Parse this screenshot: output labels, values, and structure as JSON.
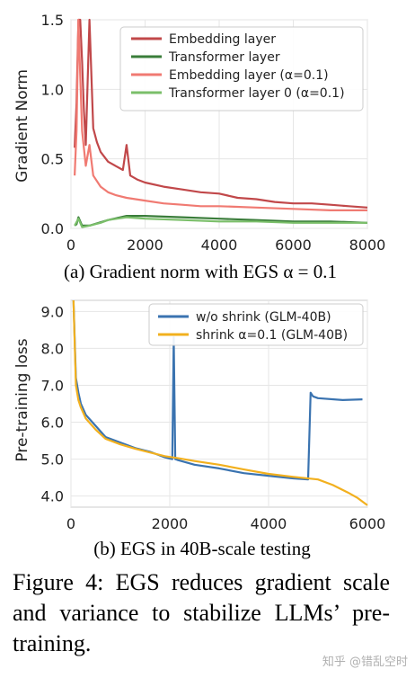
{
  "chart_data": [
    {
      "type": "line",
      "subplot_caption": "(a) Gradient norm with EGS α = 0.1",
      "xlabel": "",
      "ylabel": "Gradient Norm",
      "xlim": [
        0,
        8000
      ],
      "ylim": [
        0,
        1.5
      ],
      "x_ticks": [
        "0",
        "2000",
        "4000",
        "6000",
        "8000"
      ],
      "y_ticks": [
        "0.0",
        "0.5",
        "1.0",
        "1.5"
      ],
      "grid": true,
      "legend_position": "top-right",
      "series": [
        {
          "name": "Embedding layer",
          "color": "#c1484a",
          "x": [
            100,
            150,
            200,
            250,
            300,
            350,
            400,
            500,
            600,
            700,
            800,
            1000,
            1200,
            1400,
            1500,
            1600,
            1800,
            2000,
            2500,
            3000,
            3500,
            4000,
            4500,
            5000,
            5500,
            6000,
            6500,
            7000,
            7500,
            8000
          ],
          "y": [
            0.58,
            0.9,
            1.5,
            1.5,
            1.2,
            0.85,
            0.6,
            1.5,
            0.72,
            0.62,
            0.55,
            0.48,
            0.45,
            0.42,
            0.6,
            0.38,
            0.35,
            0.33,
            0.3,
            0.28,
            0.26,
            0.25,
            0.22,
            0.21,
            0.19,
            0.18,
            0.18,
            0.17,
            0.16,
            0.15
          ]
        },
        {
          "name": "Transformer layer",
          "color": "#3a7d3a",
          "x": [
            100,
            150,
            200,
            300,
            500,
            1000,
            1500,
            2000,
            3000,
            4000,
            5000,
            6000,
            7000,
            8000
          ],
          "y": [
            0.02,
            0.03,
            0.08,
            0.02,
            0.02,
            0.06,
            0.09,
            0.09,
            0.08,
            0.07,
            0.06,
            0.05,
            0.05,
            0.04
          ]
        },
        {
          "name": "Embedding layer (α=0.1)",
          "color": "#f07a72",
          "x": [
            100,
            150,
            200,
            250,
            300,
            400,
            500,
            600,
            800,
            1000,
            1200,
            1500,
            2000,
            2500,
            3000,
            3500,
            4000,
            5000,
            6000,
            7000,
            8000
          ],
          "y": [
            0.38,
            0.7,
            1.5,
            1.1,
            0.7,
            0.45,
            0.6,
            0.38,
            0.3,
            0.26,
            0.24,
            0.22,
            0.2,
            0.18,
            0.17,
            0.16,
            0.16,
            0.15,
            0.14,
            0.13,
            0.13
          ]
        },
        {
          "name": "Transformer layer 0 (α=0.1)",
          "color": "#7bbf6a",
          "x": [
            100,
            200,
            300,
            500,
            800,
            1000,
            1500,
            2000,
            3000,
            4000,
            5000,
            6000,
            7000,
            8000
          ],
          "y": [
            0.02,
            0.07,
            0.01,
            0.02,
            0.04,
            0.06,
            0.08,
            0.07,
            0.06,
            0.05,
            0.05,
            0.04,
            0.04,
            0.04
          ]
        }
      ]
    },
    {
      "type": "line",
      "subplot_caption": "(b) EGS in 40B-scale testing",
      "xlabel": "",
      "ylabel": "Pre-training loss",
      "xlim": [
        0,
        6000
      ],
      "ylim": [
        3.7,
        9.3
      ],
      "x_ticks": [
        "0",
        "2000",
        "4000",
        "6000"
      ],
      "y_ticks": [
        "4.0",
        "5.0",
        "6.0",
        "7.0",
        "8.0",
        "9.0"
      ],
      "grid": true,
      "legend_position": "top-right",
      "series": [
        {
          "name": "w/o shrink (GLM-40B)",
          "color": "#3a73b0",
          "x": [
            50,
            100,
            150,
            200,
            300,
            500,
            700,
            1000,
            1300,
            1600,
            1900,
            2050,
            2080,
            2110,
            2150,
            2500,
            3000,
            3500,
            4000,
            4500,
            4800,
            4850,
            4900,
            5000,
            5500,
            5900
          ],
          "y": [
            9.5,
            7.2,
            6.8,
            6.5,
            6.2,
            5.9,
            5.6,
            5.45,
            5.3,
            5.2,
            5.05,
            5.0,
            8.3,
            5.0,
            4.98,
            4.85,
            4.75,
            4.62,
            4.55,
            4.48,
            4.45,
            6.8,
            6.7,
            6.65,
            6.6,
            6.62
          ]
        },
        {
          "name": "shrink α=0.1 (GLM-40B)",
          "color": "#f2b01e",
          "x": [
            50,
            100,
            150,
            200,
            300,
            500,
            700,
            1000,
            1300,
            1600,
            1900,
            2200,
            2500,
            3000,
            3500,
            4000,
            4500,
            5000,
            5300,
            5600,
            5800,
            6000
          ],
          "y": [
            9.5,
            7.0,
            6.6,
            6.4,
            6.1,
            5.8,
            5.55,
            5.4,
            5.28,
            5.18,
            5.08,
            5.02,
            4.95,
            4.85,
            4.72,
            4.6,
            4.52,
            4.45,
            4.3,
            4.1,
            3.95,
            3.75
          ]
        }
      ]
    }
  ],
  "figure_caption": "Figure 4:  EGS reduces gradient scale and variance to stabilize LLMs’ pre-training.",
  "watermark": "知乎 @错乱空时"
}
